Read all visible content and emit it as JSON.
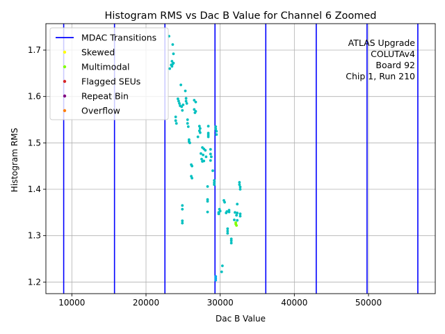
{
  "chart_data": {
    "type": "scatter",
    "title": "Histogram RMS vs Dac B Value for Channel 6 Zoomed",
    "xlabel": "Dac B Value",
    "ylabel": "Histogram RMS",
    "xlim": [
      6500,
      59000
    ],
    "ylim": [
      1.175,
      1.757
    ],
    "x_ticks": [
      10000,
      20000,
      30000,
      40000,
      50000
    ],
    "x_tick_labels": [
      "10000",
      "20000",
      "30000",
      "40000",
      "50000"
    ],
    "y_ticks": [
      1.2,
      1.3,
      1.4,
      1.5,
      1.6,
      1.7
    ],
    "y_tick_labels": [
      "1.2",
      "1.3",
      "1.4",
      "1.5",
      "1.6",
      "1.7"
    ],
    "grid": true,
    "legend_position": "top-left",
    "legend": [
      {
        "label": "MDAC Transitions",
        "marker": "line",
        "color": "#0000ff"
      },
      {
        "label": "Skewed",
        "marker": "dot",
        "color": "#ffff00"
      },
      {
        "label": "Multimodal",
        "marker": "dot",
        "color": "#80ff00"
      },
      {
        "label": "Flagged SEUs",
        "marker": "dot",
        "color": "#d62728"
      },
      {
        "label": "Repeat Bin",
        "marker": "dot",
        "color": "#800080"
      },
      {
        "label": "Overflow",
        "marker": "dot",
        "color": "#ff7f0e"
      }
    ],
    "annotation": [
      "ATLAS Upgrade",
      "COLUTAv4",
      "Board 92",
      "Chip 1, Run 210"
    ],
    "mdac_transitions": [
      8900,
      15750,
      22550,
      29300,
      36150,
      42950,
      49800,
      56650
    ],
    "colors": {
      "normal": "#00c0c0",
      "normal_alt": "#00aaee",
      "multimodal": "#80ff00",
      "mdac": "#0000ff",
      "grid": "#b0b0b0"
    },
    "points": [
      [
        23100,
        1.73
      ],
      [
        23600,
        1.712
      ],
      [
        23700,
        1.692
      ],
      [
        23500,
        1.676
      ],
      [
        23600,
        1.67
      ],
      [
        23500,
        1.665
      ],
      [
        23700,
        1.672
      ],
      [
        23400,
        1.668
      ],
      [
        23200,
        1.66
      ],
      [
        24700,
        1.625
      ],
      [
        25300,
        1.612
      ],
      [
        24300,
        1.595
      ],
      [
        24400,
        1.59
      ],
      [
        24500,
        1.585
      ],
      [
        24600,
        1.58
      ],
      [
        24800,
        1.578
      ],
      [
        25000,
        1.582
      ],
      [
        25400,
        1.596
      ],
      [
        25400,
        1.59
      ],
      [
        25500,
        1.585
      ],
      [
        26500,
        1.592
      ],
      [
        26700,
        1.588
      ],
      [
        24900,
        1.57
      ],
      [
        26500,
        1.572
      ],
      [
        26700,
        1.568
      ],
      [
        26600,
        1.565
      ],
      [
        24000,
        1.556
      ],
      [
        24000,
        1.548
      ],
      [
        24100,
        1.542
      ],
      [
        25600,
        1.55
      ],
      [
        25600,
        1.542
      ],
      [
        25700,
        1.535
      ],
      [
        27200,
        1.536
      ],
      [
        27300,
        1.531
      ],
      [
        27200,
        1.526
      ],
      [
        27300,
        1.522
      ],
      [
        27000,
        1.513
      ],
      [
        28400,
        1.536
      ],
      [
        28400,
        1.521
      ],
      [
        28400,
        1.517
      ],
      [
        28400,
        1.513
      ],
      [
        29400,
        1.535
      ],
      [
        29400,
        1.53
      ],
      [
        29500,
        1.525
      ],
      [
        29500,
        1.518
      ],
      [
        25800,
        1.507
      ],
      [
        25800,
        1.503
      ],
      [
        25900,
        1.5
      ],
      [
        27600,
        1.49
      ],
      [
        27800,
        1.487
      ],
      [
        28000,
        1.484
      ],
      [
        28700,
        1.486
      ],
      [
        27400,
        1.477
      ],
      [
        27700,
        1.474
      ],
      [
        28100,
        1.47
      ],
      [
        28700,
        1.476
      ],
      [
        28800,
        1.47
      ],
      [
        27500,
        1.465
      ],
      [
        27600,
        1.46
      ],
      [
        27800,
        1.461
      ],
      [
        28700,
        1.462
      ],
      [
        26100,
        1.453
      ],
      [
        26200,
        1.45
      ],
      [
        29000,
        1.44
      ],
      [
        26100,
        1.428
      ],
      [
        26200,
        1.424
      ],
      [
        29200,
        1.419
      ],
      [
        29200,
        1.414
      ],
      [
        29200,
        1.41
      ],
      [
        32600,
        1.415
      ],
      [
        32600,
        1.41
      ],
      [
        32700,
        1.405
      ],
      [
        32700,
        1.4
      ],
      [
        28300,
        1.406
      ],
      [
        28300,
        1.378
      ],
      [
        28300,
        1.374
      ],
      [
        30500,
        1.376
      ],
      [
        30600,
        1.372
      ],
      [
        32300,
        1.368
      ],
      [
        24900,
        1.365
      ],
      [
        24900,
        1.357
      ],
      [
        29900,
        1.357
      ],
      [
        30000,
        1.353
      ],
      [
        29800,
        1.35
      ],
      [
        29800,
        1.347
      ],
      [
        31200,
        1.355
      ],
      [
        30900,
        1.352
      ],
      [
        30800,
        1.349
      ],
      [
        31200,
        1.351
      ],
      [
        32000,
        1.35
      ],
      [
        32300,
        1.349
      ],
      [
        32700,
        1.347
      ],
      [
        32700,
        1.342
      ],
      [
        32200,
        1.344
      ],
      [
        28300,
        1.351
      ],
      [
        31900,
        1.334
      ],
      [
        32300,
        1.333
      ],
      [
        24900,
        1.332
      ],
      [
        24900,
        1.327
      ],
      [
        31000,
        1.315
      ],
      [
        31000,
        1.31
      ],
      [
        31000,
        1.305
      ],
      [
        31500,
        1.293
      ],
      [
        31500,
        1.289
      ],
      [
        31500,
        1.284
      ],
      [
        30300,
        1.235
      ],
      [
        30200,
        1.222
      ]
    ],
    "points_alt": [
      [
        29400,
        1.212
      ],
      [
        29400,
        1.208
      ],
      [
        29400,
        1.204
      ]
    ],
    "points_multimodal": [
      [
        32100,
        1.328
      ],
      [
        32100,
        1.325
      ],
      [
        32200,
        1.322
      ]
    ]
  }
}
